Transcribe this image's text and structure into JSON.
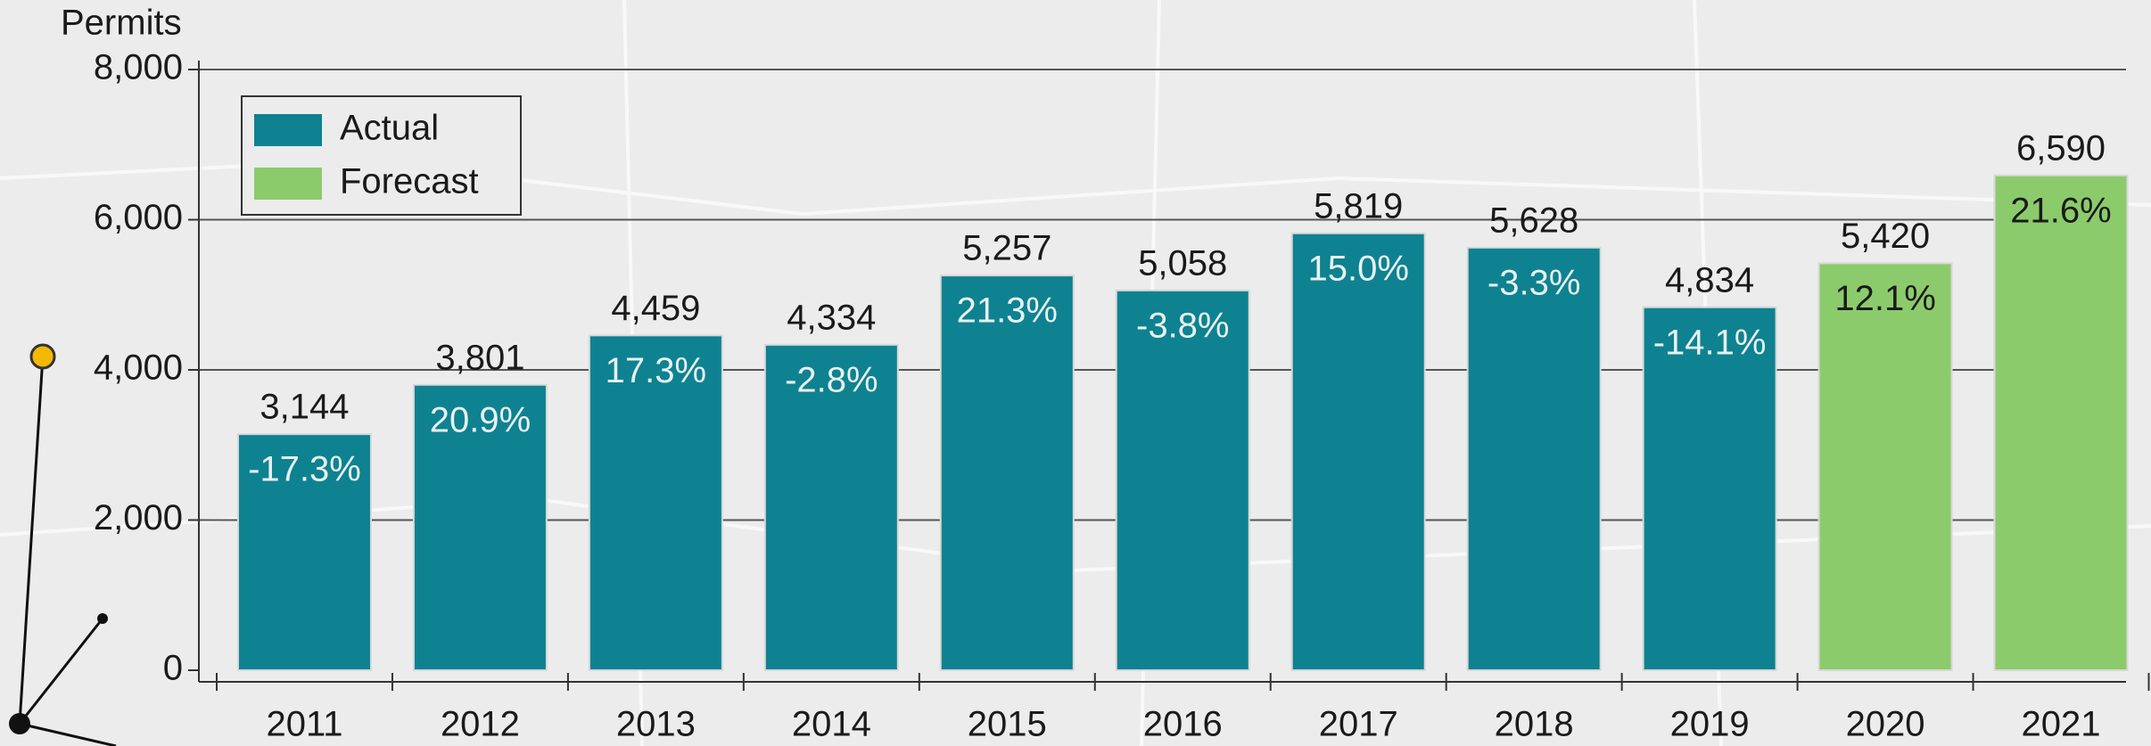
{
  "chart_data": {
    "type": "bar",
    "y_axis_label": "Permits",
    "categories": [
      "2011",
      "2012",
      "2013",
      "2014",
      "2015",
      "2016",
      "2017",
      "2018",
      "2019",
      "2020",
      "2021"
    ],
    "series": [
      {
        "name": "Actual",
        "color": "#0e8290",
        "label_color": "#e8f1f2",
        "values": [
          3144,
          3801,
          4459,
          4334,
          5257,
          5058,
          5819,
          5628,
          4834,
          null,
          null
        ],
        "value_labels": [
          "3,144",
          "3,801",
          "4,459",
          "4,334",
          "5,257",
          "5,058",
          "5,819",
          "5,628",
          "4,834",
          null,
          null
        ]
      },
      {
        "name": "Forecast",
        "color": "#8ccb6c",
        "label_color": "#1a1a1a",
        "values": [
          null,
          null,
          null,
          null,
          null,
          null,
          null,
          null,
          null,
          5420,
          6590
        ],
        "value_labels": [
          null,
          null,
          null,
          null,
          null,
          null,
          null,
          null,
          null,
          "5,420",
          "6,590"
        ]
      }
    ],
    "growth": {
      "values": [
        -17.3,
        20.9,
        17.3,
        -2.8,
        21.3,
        -3.8,
        15.0,
        -3.3,
        -14.1,
        12.1,
        21.6
      ],
      "value_labels": [
        "-17.3%",
        "20.9%",
        "17.3%",
        "-2.8%",
        "21.3%",
        "-3.8%",
        "15.0%",
        "-3.3%",
        "-14.1%",
        "12.1%",
        "21.6%"
      ]
    },
    "ylim": [
      0,
      8000
    ],
    "yticks": [
      0,
      {
        "value": 2000,
        "label": "2,000"
      },
      {
        "value": 4000,
        "label": "4,000"
      },
      {
        "value": 6000,
        "label": "6,000"
      },
      {
        "value": 8000,
        "label": "8,000"
      }
    ],
    "grid": true,
    "legend": "upper left"
  }
}
